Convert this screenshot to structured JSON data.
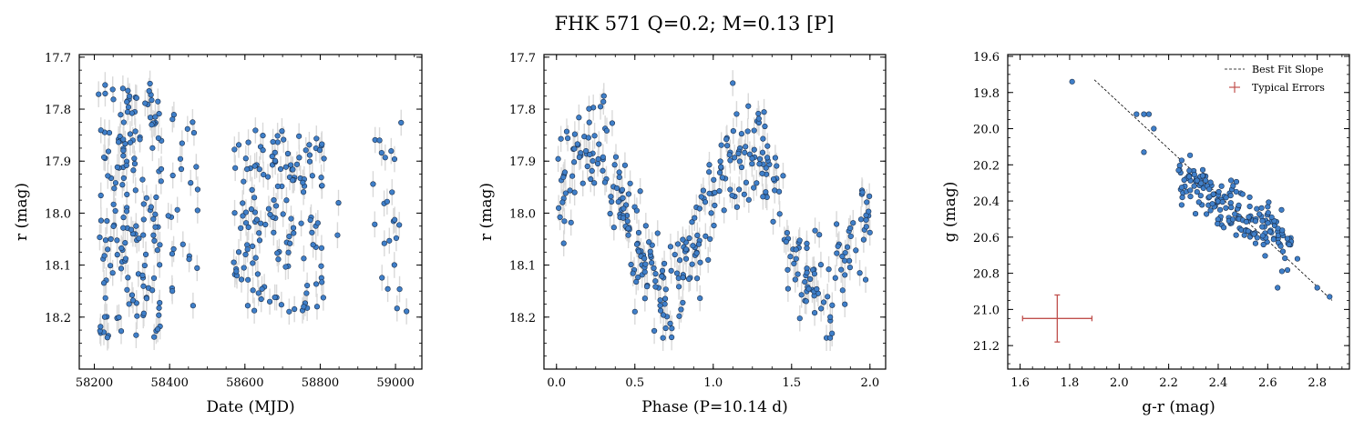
{
  "figure": {
    "title": "FHK 571  Q=0.2; M=0.13 [P]",
    "colors": {
      "point_fill": "#3f7fc9",
      "point_edge": "#1a2e4a",
      "errorbar": "#d9d9d9",
      "fit_line": "#000000",
      "typical_error": "#c0504d"
    }
  },
  "chart_data": [
    {
      "type": "scatter",
      "title": "",
      "xlabel": "Date (MJD)",
      "ylabel": "r (mag)",
      "xlim": [
        58160,
        59070
      ],
      "ylim": [
        18.3,
        17.695
      ],
      "y_inverted": true,
      "xticks": [
        58200,
        58400,
        58600,
        58800,
        59000
      ],
      "yticks": [
        17.7,
        17.8,
        17.9,
        18.0,
        18.1,
        18.2
      ],
      "y_error": 0.025,
      "groups": [
        {
          "name": "",
          "x_range": [
            58210,
            58380
          ],
          "n": 170,
          "y_range": [
            17.75,
            18.24
          ]
        },
        {
          "name": "",
          "x_range": [
            58395,
            58475
          ],
          "n": 25,
          "y_range": [
            17.81,
            18.2
          ]
        },
        {
          "name": "",
          "x_range": [
            58570,
            58810
          ],
          "n": 150,
          "y_range": [
            17.84,
            18.19
          ]
        },
        {
          "name": "",
          "x_range": [
            58840,
            58860
          ],
          "n": 2,
          "y_range": [
            17.95,
            18.14
          ]
        },
        {
          "name": "",
          "x_range": [
            58940,
            59030
          ],
          "n": 24,
          "y_range": [
            17.81,
            18.2
          ]
        }
      ]
    },
    {
      "type": "scatter",
      "title": "",
      "xlabel": "Phase (P=10.14 d)",
      "ylabel": "r (mag)",
      "xlim": [
        -0.08,
        2.1
      ],
      "ylim": [
        18.3,
        17.695
      ],
      "y_inverted": true,
      "xticks": [
        0.0,
        0.5,
        1.0,
        1.5,
        2.0
      ],
      "xtick_labels": [
        "0.0",
        "0.5",
        "1.0",
        "1.5",
        "2.0"
      ],
      "yticks": [
        17.7,
        17.8,
        17.9,
        18.0,
        18.1,
        18.2
      ],
      "y_error": 0.025,
      "period_days": 10.14,
      "model": {
        "mean": 18.01,
        "amplitude": 0.13,
        "peak_phase": 0.2,
        "scatter": 0.05
      },
      "n": 371
    },
    {
      "type": "scatter",
      "title": "",
      "xlabel": "g-r (mag)",
      "ylabel": "g (mag)",
      "xlim": [
        1.55,
        2.93
      ],
      "ylim": [
        21.33,
        19.59
      ],
      "y_inverted": true,
      "xticks": [
        1.6,
        1.8,
        2.0,
        2.2,
        2.4,
        2.6,
        2.8
      ],
      "xtick_labels": [
        "1.6",
        "1.8",
        "2.0",
        "2.2",
        "2.4",
        "2.6",
        "2.8"
      ],
      "yticks": [
        19.6,
        19.8,
        20.0,
        20.2,
        20.4,
        20.6,
        20.8,
        21.0,
        21.2
      ],
      "ytick_labels": [
        "19.6",
        "19.8",
        "20.0",
        "20.2",
        "20.4",
        "20.6",
        "20.8",
        "21.0",
        "21.2"
      ],
      "fit_line": {
        "x": [
          1.9,
          2.86
        ],
        "y": [
          19.73,
          20.95
        ]
      },
      "typical_error": {
        "x": 1.75,
        "y": 21.05,
        "xerr": 0.14,
        "yerr": 0.13
      },
      "legend": {
        "location": "upper right",
        "entries": [
          "Best Fit Slope",
          "Typical Errors"
        ]
      },
      "outliers": [
        {
          "x": 1.81,
          "y": 19.74
        },
        {
          "x": 2.07,
          "y": 19.92
        },
        {
          "x": 2.1,
          "y": 19.92
        },
        {
          "x": 2.12,
          "y": 19.92
        },
        {
          "x": 2.14,
          "y": 20.0
        },
        {
          "x": 2.1,
          "y": 20.13
        },
        {
          "x": 2.24,
          "y": 20.23
        },
        {
          "x": 2.64,
          "y": 20.88
        },
        {
          "x": 2.72,
          "y": 20.72
        },
        {
          "x": 2.8,
          "y": 20.88
        },
        {
          "x": 2.85,
          "y": 20.93
        }
      ],
      "cloud": {
        "x_range": [
          2.24,
          2.7
        ],
        "slope": 0.85,
        "pivot": {
          "x": 2.47,
          "y": 20.45
        },
        "scatter": 0.07,
        "n": 180
      }
    }
  ]
}
